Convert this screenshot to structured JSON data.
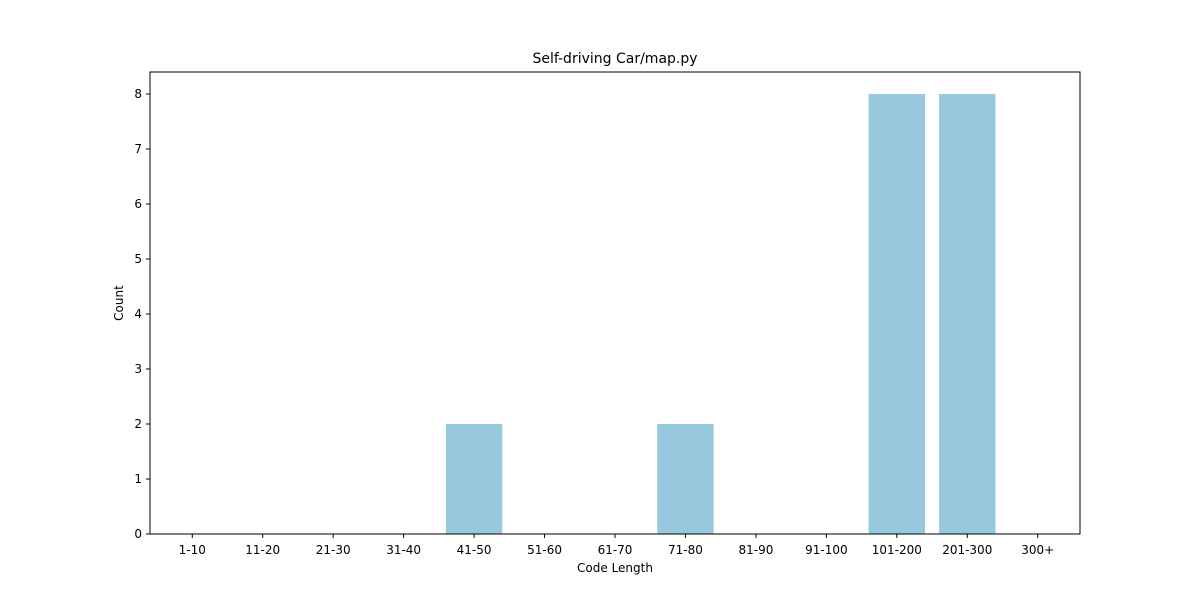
{
  "chart_data": {
    "type": "bar",
    "title": "Self-driving Car/map.py",
    "xlabel": "Code Length",
    "ylabel": "Count",
    "categories": [
      "1-10",
      "11-20",
      "21-30",
      "31-40",
      "41-50",
      "51-60",
      "61-70",
      "71-80",
      "81-90",
      "91-100",
      "101-200",
      "201-300",
      "300+"
    ],
    "values": [
      0,
      0,
      0,
      0,
      2,
      0,
      0,
      2,
      0,
      0,
      8,
      8,
      0
    ],
    "ylim": [
      0,
      8.4
    ],
    "yticks": [
      0,
      1,
      2,
      3,
      4,
      5,
      6,
      7,
      8
    ],
    "grid": false,
    "bar_color": "#96c9dd"
  }
}
